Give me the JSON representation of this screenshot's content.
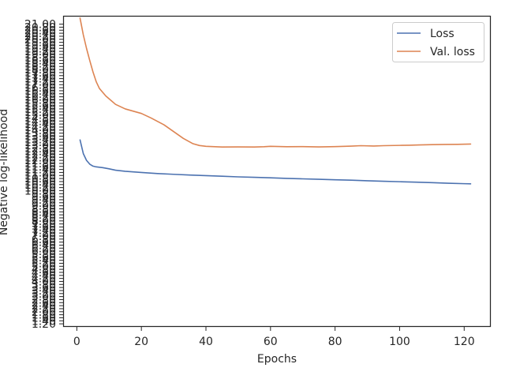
{
  "chart_data": {
    "type": "line",
    "title": "",
    "xlabel": "Epochs",
    "ylabel": "Negative log-likelihood",
    "xlim": [
      -4,
      128
    ],
    "ylim": [
      1.05,
      21.5
    ],
    "x_ticks": [
      0,
      20,
      40,
      60,
      80,
      100,
      120
    ],
    "y_ticks_labeled": [
      1.2,
      1.4,
      1.6,
      1.8,
      2.0,
      2.2,
      2.4,
      2.6,
      2.8,
      3.0,
      3.2,
      3.4,
      3.6,
      3.8,
      4.0,
      4.2,
      4.4,
      4.6,
      4.8,
      5.0,
      5.2,
      5.4,
      5.6,
      5.8,
      6.0,
      6.2,
      6.4,
      6.6,
      6.8,
      7.0,
      7.2,
      7.4,
      7.6,
      7.8,
      8.0,
      8.2,
      8.4,
      8.6,
      8.8,
      9.0,
      9.2,
      9.4,
      9.6,
      9.8,
      10.0,
      10.2,
      10.4,
      10.6,
      10.8,
      11.0,
      11.2,
      11.4,
      11.6,
      11.8,
      12.0,
      12.2,
      12.4,
      12.6,
      12.8,
      13.0,
      13.2,
      13.4,
      13.6,
      13.8,
      14.0,
      14.2,
      14.4,
      14.6,
      14.8,
      15.0,
      15.2,
      15.4,
      15.6,
      15.8,
      16.0,
      16.2,
      16.4,
      16.6,
      16.8,
      17.0,
      17.2,
      17.4,
      17.6,
      17.8,
      18.0,
      18.2,
      18.4,
      18.6,
      18.8,
      19.0,
      19.2,
      19.4,
      19.6,
      19.8,
      20.0,
      20.2,
      20.4,
      20.6,
      20.8,
      21.0
    ],
    "y_tick_format": "0.00",
    "grid": false,
    "legend_position": "top-right",
    "series": [
      {
        "name": "Loss",
        "color": "#4c72b0",
        "points": [
          [
            1,
            13.35
          ],
          [
            2,
            12.45
          ],
          [
            3,
            12.0
          ],
          [
            4,
            11.75
          ],
          [
            5,
            11.62
          ],
          [
            6,
            11.57
          ],
          [
            8,
            11.52
          ],
          [
            10,
            11.44
          ],
          [
            12,
            11.35
          ],
          [
            15,
            11.28
          ],
          [
            20,
            11.2
          ],
          [
            25,
            11.13
          ],
          [
            30,
            11.08
          ],
          [
            35,
            11.03
          ],
          [
            40,
            10.99
          ],
          [
            45,
            10.95
          ],
          [
            50,
            10.91
          ],
          [
            55,
            10.88
          ],
          [
            60,
            10.85
          ],
          [
            65,
            10.81
          ],
          [
            70,
            10.78
          ],
          [
            75,
            10.75
          ],
          [
            80,
            10.72
          ],
          [
            85,
            10.69
          ],
          [
            90,
            10.65
          ],
          [
            95,
            10.62
          ],
          [
            100,
            10.59
          ],
          [
            105,
            10.56
          ],
          [
            110,
            10.53
          ],
          [
            115,
            10.49
          ],
          [
            120,
            10.46
          ],
          [
            122,
            10.45
          ]
        ]
      },
      {
        "name": "Val. loss",
        "color": "#dd8452",
        "points": [
          [
            1,
            21.4
          ],
          [
            2,
            20.3
          ],
          [
            3,
            19.4
          ],
          [
            4,
            18.6
          ],
          [
            5,
            17.85
          ],
          [
            6,
            17.2
          ],
          [
            7,
            16.75
          ],
          [
            9,
            16.25
          ],
          [
            12,
            15.7
          ],
          [
            15,
            15.4
          ],
          [
            20,
            15.1
          ],
          [
            23,
            14.8
          ],
          [
            27,
            14.35
          ],
          [
            30,
            13.9
          ],
          [
            33,
            13.45
          ],
          [
            36,
            13.1
          ],
          [
            38,
            12.98
          ],
          [
            40,
            12.93
          ],
          [
            45,
            12.88
          ],
          [
            50,
            12.89
          ],
          [
            55,
            12.88
          ],
          [
            58,
            12.9
          ],
          [
            60,
            12.93
          ],
          [
            65,
            12.9
          ],
          [
            70,
            12.91
          ],
          [
            75,
            12.89
          ],
          [
            80,
            12.91
          ],
          [
            85,
            12.94
          ],
          [
            88,
            12.97
          ],
          [
            92,
            12.95
          ],
          [
            95,
            12.97
          ],
          [
            100,
            12.99
          ],
          [
            103,
            13.0
          ],
          [
            106,
            13.02
          ],
          [
            110,
            13.04
          ],
          [
            114,
            13.05
          ],
          [
            118,
            13.06
          ],
          [
            122,
            13.08
          ]
        ]
      }
    ]
  }
}
